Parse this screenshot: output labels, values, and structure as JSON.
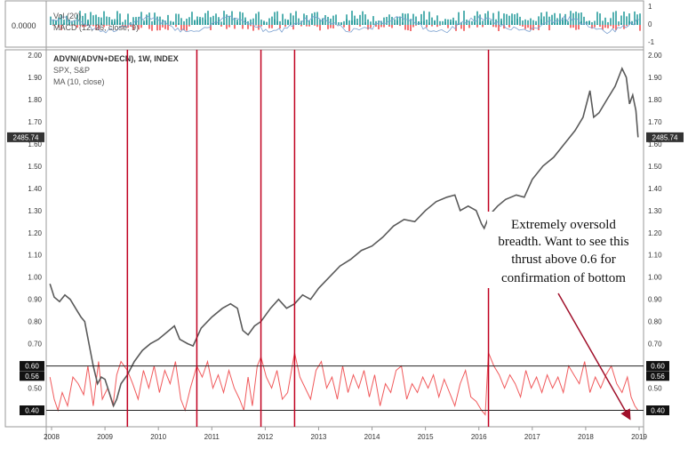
{
  "indicator_pane": {
    "vol_label": "Vol (20)",
    "macd_label": "MACD (12, 26, close, 9)",
    "left_value": "0.0000",
    "right_ticks": [
      "1",
      "0",
      "-1"
    ]
  },
  "legend": {
    "line1": "ADVN/(ADVN+DECN), 1W, INDEX",
    "line2": "SPX, S&P",
    "line3": "MA (10, close)"
  },
  "price_badge": "2485.74",
  "level_badges": {
    "upper": "0.60",
    "mid": "0.56",
    "lower": "0.40"
  },
  "annotation": {
    "lines": [
      "Extremely oversold",
      "breadth. Want to see this",
      "thrust above 0.6 for",
      "confirmation of bottom"
    ]
  },
  "colors": {
    "spx": "#5a5a5a",
    "breadth": "#f0595b",
    "vertical_lines": "#c00020",
    "arrow": "#a0102a",
    "vol_bars": "#2a9d9d",
    "macd_neg": "#f0595b",
    "badge_bg": "#111111"
  },
  "chart_data": {
    "type": "line",
    "x_ticks": [
      "2008",
      "2009",
      "2010",
      "2011",
      "2012",
      "2013",
      "2014",
      "2015",
      "2016",
      "2017",
      "2018",
      "2019"
    ],
    "x_range": [
      2007.95,
      2019.05
    ],
    "y_ticks": [
      "2.00",
      "1.90",
      "1.80",
      "1.70",
      "1.60",
      "1.50",
      "1.40",
      "1.30",
      "1.20",
      "1.10",
      "1.00",
      "0.90",
      "0.80",
      "0.70",
      "0.60",
      "0.50",
      "0.40"
    ],
    "ylim": [
      0.35,
      2.0
    ],
    "horizontal_levels": [
      0.6,
      0.56,
      0.4
    ],
    "vertical_markers": [
      2009.42,
      2010.72,
      2011.92,
      2012.55,
      2016.18
    ],
    "series": [
      {
        "name": "SPX, S&P",
        "points": [
          [
            2007.97,
            0.97
          ],
          [
            2008.05,
            0.91
          ],
          [
            2008.15,
            0.89
          ],
          [
            2008.25,
            0.92
          ],
          [
            2008.35,
            0.9
          ],
          [
            2008.45,
            0.86
          ],
          [
            2008.55,
            0.82
          ],
          [
            2008.62,
            0.8
          ],
          [
            2008.7,
            0.7
          ],
          [
            2008.78,
            0.6
          ],
          [
            2008.86,
            0.52
          ],
          [
            2008.93,
            0.55
          ],
          [
            2009.0,
            0.54
          ],
          [
            2009.08,
            0.48
          ],
          [
            2009.16,
            0.42
          ],
          [
            2009.22,
            0.45
          ],
          [
            2009.3,
            0.52
          ],
          [
            2009.42,
            0.56
          ],
          [
            2009.55,
            0.62
          ],
          [
            2009.7,
            0.67
          ],
          [
            2009.85,
            0.7
          ],
          [
            2010.0,
            0.72
          ],
          [
            2010.15,
            0.75
          ],
          [
            2010.3,
            0.78
          ],
          [
            2010.4,
            0.72
          ],
          [
            2010.55,
            0.7
          ],
          [
            2010.65,
            0.69
          ],
          [
            2010.8,
            0.77
          ],
          [
            2011.0,
            0.82
          ],
          [
            2011.2,
            0.86
          ],
          [
            2011.35,
            0.88
          ],
          [
            2011.48,
            0.86
          ],
          [
            2011.58,
            0.76
          ],
          [
            2011.68,
            0.74
          ],
          [
            2011.8,
            0.78
          ],
          [
            2011.92,
            0.8
          ],
          [
            2012.1,
            0.86
          ],
          [
            2012.25,
            0.9
          ],
          [
            2012.4,
            0.86
          ],
          [
            2012.55,
            0.88
          ],
          [
            2012.7,
            0.92
          ],
          [
            2012.85,
            0.9
          ],
          [
            2013.0,
            0.95
          ],
          [
            2013.2,
            1.0
          ],
          [
            2013.4,
            1.05
          ],
          [
            2013.6,
            1.08
          ],
          [
            2013.8,
            1.12
          ],
          [
            2014.0,
            1.14
          ],
          [
            2014.2,
            1.18
          ],
          [
            2014.4,
            1.23
          ],
          [
            2014.6,
            1.26
          ],
          [
            2014.8,
            1.25
          ],
          [
            2015.0,
            1.3
          ],
          [
            2015.2,
            1.34
          ],
          [
            2015.4,
            1.36
          ],
          [
            2015.55,
            1.37
          ],
          [
            2015.65,
            1.3
          ],
          [
            2015.8,
            1.32
          ],
          [
            2015.95,
            1.3
          ],
          [
            2016.05,
            1.24
          ],
          [
            2016.1,
            1.22
          ],
          [
            2016.2,
            1.28
          ],
          [
            2016.35,
            1.32
          ],
          [
            2016.5,
            1.35
          ],
          [
            2016.7,
            1.37
          ],
          [
            2016.85,
            1.36
          ],
          [
            2017.0,
            1.44
          ],
          [
            2017.2,
            1.5
          ],
          [
            2017.4,
            1.54
          ],
          [
            2017.6,
            1.6
          ],
          [
            2017.8,
            1.66
          ],
          [
            2017.95,
            1.72
          ],
          [
            2018.08,
            1.84
          ],
          [
            2018.15,
            1.72
          ],
          [
            2018.25,
            1.74
          ],
          [
            2018.4,
            1.8
          ],
          [
            2018.55,
            1.86
          ],
          [
            2018.68,
            1.94
          ],
          [
            2018.76,
            1.9
          ],
          [
            2018.82,
            1.78
          ],
          [
            2018.88,
            1.82
          ],
          [
            2018.94,
            1.75
          ],
          [
            2018.98,
            1.63
          ]
        ]
      },
      {
        "name": "ADVN/(ADVN+DECN), 1W, INDEX",
        "points": [
          [
            2007.97,
            0.55
          ],
          [
            2008.05,
            0.45
          ],
          [
            2008.12,
            0.4
          ],
          [
            2008.2,
            0.48
          ],
          [
            2008.3,
            0.42
          ],
          [
            2008.4,
            0.55
          ],
          [
            2008.5,
            0.52
          ],
          [
            2008.6,
            0.47
          ],
          [
            2008.68,
            0.6
          ],
          [
            2008.78,
            0.42
          ],
          [
            2008.88,
            0.62
          ],
          [
            2008.95,
            0.45
          ],
          [
            2009.05,
            0.5
          ],
          [
            2009.15,
            0.42
          ],
          [
            2009.22,
            0.56
          ],
          [
            2009.3,
            0.62
          ],
          [
            2009.42,
            0.58
          ],
          [
            2009.52,
            0.52
          ],
          [
            2009.62,
            0.45
          ],
          [
            2009.72,
            0.58
          ],
          [
            2009.82,
            0.5
          ],
          [
            2009.92,
            0.6
          ],
          [
            2010.02,
            0.48
          ],
          [
            2010.12,
            0.58
          ],
          [
            2010.22,
            0.52
          ],
          [
            2010.32,
            0.62
          ],
          [
            2010.42,
            0.45
          ],
          [
            2010.5,
            0.4
          ],
          [
            2010.6,
            0.5
          ],
          [
            2010.72,
            0.6
          ],
          [
            2010.82,
            0.55
          ],
          [
            2010.92,
            0.62
          ],
          [
            2011.02,
            0.5
          ],
          [
            2011.12,
            0.56
          ],
          [
            2011.22,
            0.48
          ],
          [
            2011.32,
            0.58
          ],
          [
            2011.42,
            0.5
          ],
          [
            2011.52,
            0.45
          ],
          [
            2011.6,
            0.4
          ],
          [
            2011.68,
            0.55
          ],
          [
            2011.76,
            0.42
          ],
          [
            2011.85,
            0.6
          ],
          [
            2011.92,
            0.64
          ],
          [
            2012.02,
            0.55
          ],
          [
            2012.12,
            0.5
          ],
          [
            2012.22,
            0.58
          ],
          [
            2012.32,
            0.45
          ],
          [
            2012.42,
            0.48
          ],
          [
            2012.55,
            0.66
          ],
          [
            2012.65,
            0.55
          ],
          [
            2012.75,
            0.5
          ],
          [
            2012.85,
            0.45
          ],
          [
            2012.95,
            0.58
          ],
          [
            2013.05,
            0.62
          ],
          [
            2013.15,
            0.5
          ],
          [
            2013.25,
            0.55
          ],
          [
            2013.35,
            0.45
          ],
          [
            2013.45,
            0.6
          ],
          [
            2013.55,
            0.48
          ],
          [
            2013.65,
            0.56
          ],
          [
            2013.75,
            0.5
          ],
          [
            2013.85,
            0.58
          ],
          [
            2013.95,
            0.46
          ],
          [
            2014.05,
            0.56
          ],
          [
            2014.15,
            0.42
          ],
          [
            2014.25,
            0.52
          ],
          [
            2014.35,
            0.48
          ],
          [
            2014.45,
            0.58
          ],
          [
            2014.55,
            0.6
          ],
          [
            2014.65,
            0.45
          ],
          [
            2014.75,
            0.52
          ],
          [
            2014.85,
            0.48
          ],
          [
            2014.95,
            0.55
          ],
          [
            2015.05,
            0.5
          ],
          [
            2015.15,
            0.56
          ],
          [
            2015.25,
            0.46
          ],
          [
            2015.35,
            0.54
          ],
          [
            2015.45,
            0.48
          ],
          [
            2015.55,
            0.42
          ],
          [
            2015.65,
            0.52
          ],
          [
            2015.75,
            0.58
          ],
          [
            2015.85,
            0.46
          ],
          [
            2015.95,
            0.44
          ],
          [
            2016.05,
            0.4
          ],
          [
            2016.12,
            0.38
          ],
          [
            2016.18,
            0.66
          ],
          [
            2016.28,
            0.6
          ],
          [
            2016.38,
            0.56
          ],
          [
            2016.48,
            0.5
          ],
          [
            2016.58,
            0.56
          ],
          [
            2016.68,
            0.52
          ],
          [
            2016.78,
            0.46
          ],
          [
            2016.88,
            0.58
          ],
          [
            2016.98,
            0.5
          ],
          [
            2017.08,
            0.55
          ],
          [
            2017.18,
            0.48
          ],
          [
            2017.28,
            0.56
          ],
          [
            2017.38,
            0.5
          ],
          [
            2017.48,
            0.55
          ],
          [
            2017.58,
            0.48
          ],
          [
            2017.68,
            0.6
          ],
          [
            2017.78,
            0.56
          ],
          [
            2017.88,
            0.52
          ],
          [
            2017.98,
            0.62
          ],
          [
            2018.08,
            0.48
          ],
          [
            2018.18,
            0.55
          ],
          [
            2018.28,
            0.5
          ],
          [
            2018.38,
            0.56
          ],
          [
            2018.48,
            0.6
          ],
          [
            2018.58,
            0.52
          ],
          [
            2018.68,
            0.48
          ],
          [
            2018.78,
            0.55
          ],
          [
            2018.85,
            0.46
          ],
          [
            2018.92,
            0.42
          ],
          [
            2018.98,
            0.4
          ]
        ]
      }
    ]
  }
}
